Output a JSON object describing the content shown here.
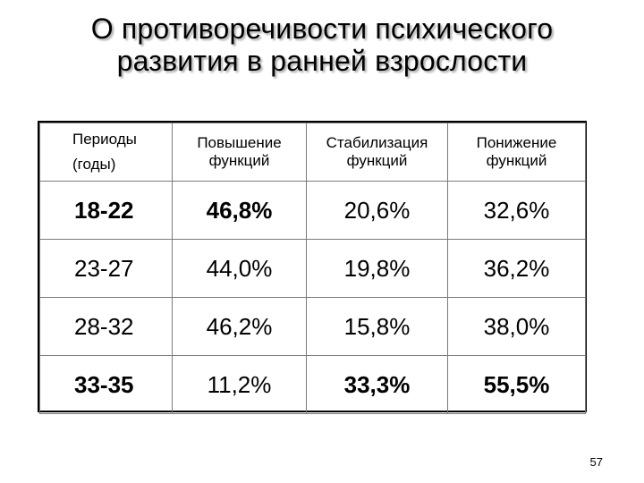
{
  "slide": {
    "title_line1": "О противоречивости психического",
    "title_line2": "развития в ранней взрослости",
    "page_number": "57"
  },
  "table": {
    "headers": [
      {
        "line1": "Периоды",
        "line2": "(годы)"
      },
      {
        "line1": "Повышение",
        "line2": "функций"
      },
      {
        "line1": "Стабилизация",
        "line2": "функций"
      },
      {
        "line1": "Понижение",
        "line2": "функций"
      }
    ],
    "rows": [
      {
        "period": "18-22",
        "increase": "46,8%",
        "stable": "20,6%",
        "decrease": "32,6%"
      },
      {
        "period": "23-27",
        "increase": "44,0%",
        "stable": "19,8%",
        "decrease": "36,2%"
      },
      {
        "period": "28-32",
        "increase": "46,2%",
        "stable": "15,8%",
        "decrease": "38,0%"
      },
      {
        "period": "33-35",
        "increase": "11,2%",
        "stable": "33,3%",
        "decrease": "55,5%"
      }
    ]
  }
}
